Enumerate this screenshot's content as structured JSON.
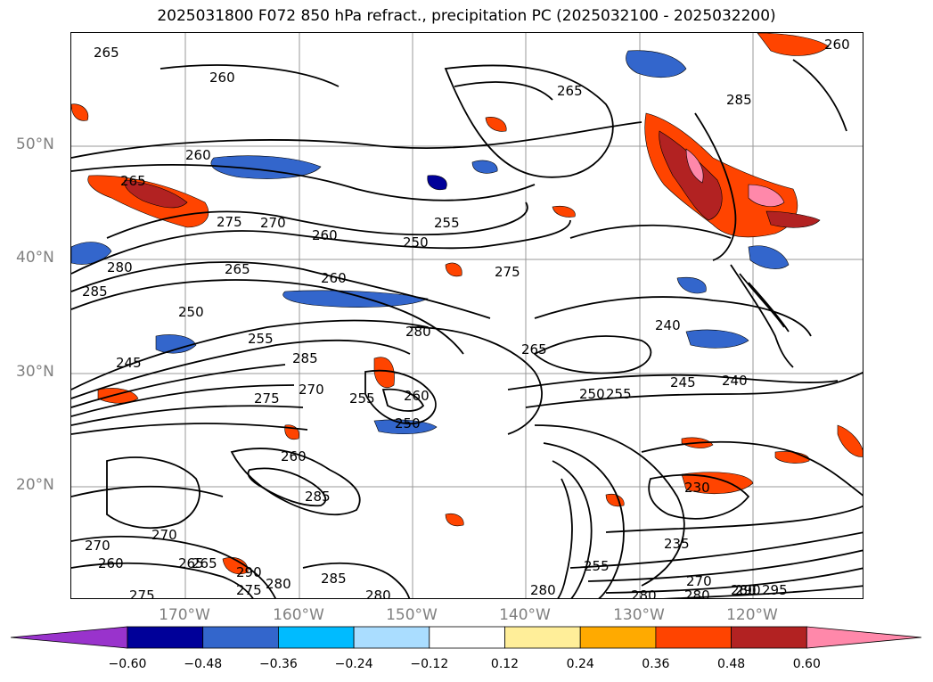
{
  "title": "2025031800 F072 850 hPa refract., precipitation PC (2025032100 - 2025032200)",
  "latitude_labels": [
    "50°N",
    "40°N",
    "30°N",
    "20°N"
  ],
  "longitude_labels": [
    "170°W",
    "160°W",
    "150°W",
    "140°W",
    "130°W",
    "120°W"
  ],
  "colorbar": {
    "ticks": [
      "−0.60",
      "−0.48",
      "−0.36",
      "−0.24",
      "−0.12",
      "0.12",
      "0.24",
      "0.36",
      "0.48",
      "0.60"
    ],
    "colors": [
      "#9933cc",
      "#000099",
      "#3366cc",
      "#00bbff",
      "#aaddff",
      "#ffffff",
      "#ffee99",
      "#ffaa00",
      "#ff4400",
      "#b22222",
      "#ff88aa"
    ]
  },
  "contour_labels": [
    "265",
    "260",
    "260",
    "265",
    "265",
    "275",
    "270",
    "260",
    "255",
    "250",
    "280",
    "285",
    "265",
    "275",
    "260",
    "250",
    "255",
    "245",
    "280",
    "285",
    "270",
    "275",
    "255",
    "260",
    "250",
    "265",
    "250",
    "245",
    "240",
    "240",
    "230",
    "235",
    "255",
    "280",
    "280",
    "290",
    "275",
    "280",
    "285",
    "275",
    "285",
    "270",
    "265",
    "260",
    "270",
    "260",
    "280",
    "280",
    "295",
    "290",
    "270",
    "280",
    "255",
    "265",
    "285",
    "260"
  ]
}
